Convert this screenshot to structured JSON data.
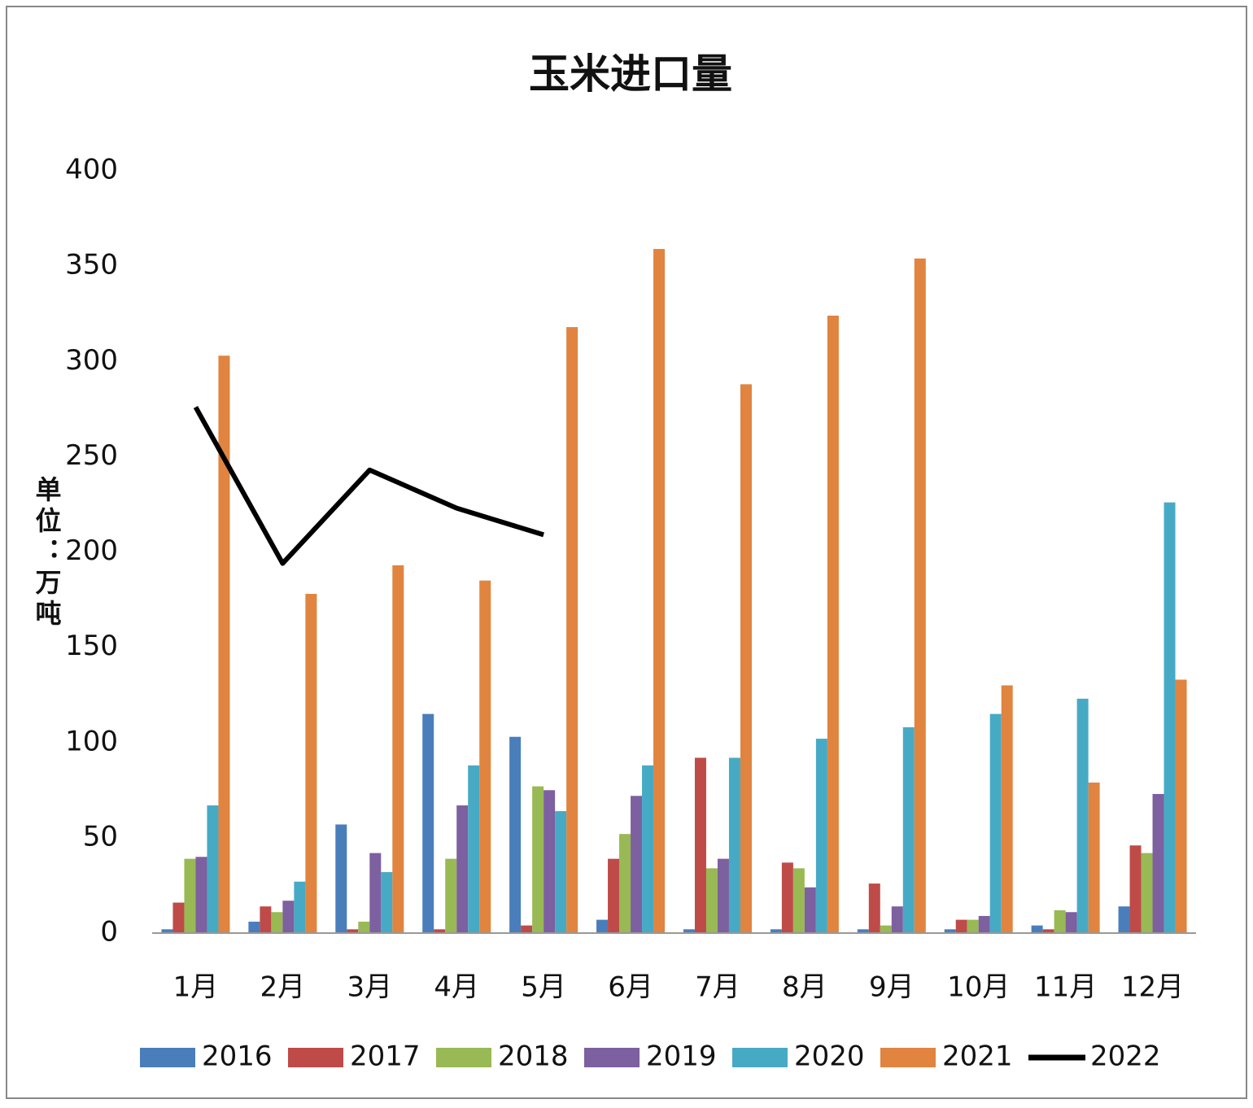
{
  "chart_data": {
    "type": "bar",
    "title": "玉米进口量",
    "y_label": "单位：万吨",
    "categories": [
      "1月",
      "2月",
      "3月",
      "4月",
      "5月",
      "6月",
      "7月",
      "8月",
      "9月",
      "10月",
      "11月",
      "12月"
    ],
    "series": [
      {
        "name": "2016",
        "color": "#4a7ebb",
        "values": [
          2,
          6,
          57,
          115,
          103,
          7,
          2,
          2,
          2,
          2,
          4,
          14
        ]
      },
      {
        "name": "2017",
        "color": "#be4b48",
        "values": [
          16,
          14,
          2,
          2,
          4,
          39,
          92,
          37,
          26,
          7,
          2,
          46
        ]
      },
      {
        "name": "2018",
        "color": "#98b954",
        "values": [
          39,
          11,
          6,
          39,
          77,
          52,
          34,
          34,
          4,
          7,
          12,
          42
        ]
      },
      {
        "name": "2019",
        "color": "#7d60a0",
        "values": [
          40,
          17,
          42,
          67,
          75,
          72,
          39,
          24,
          14,
          9,
          11,
          73
        ]
      },
      {
        "name": "2020",
        "color": "#46aac5",
        "values": [
          67,
          27,
          32,
          88,
          64,
          88,
          92,
          102,
          108,
          115,
          123,
          226
        ]
      },
      {
        "name": "2021",
        "color": "#e0843f",
        "values": [
          303,
          178,
          193,
          185,
          318,
          359,
          288,
          324,
          354,
          130,
          79,
          133
        ]
      },
      {
        "name": "2022",
        "color": "#000000",
        "type": "line",
        "values": [
          276,
          194,
          243,
          223,
          209,
          null,
          null,
          null,
          null,
          null,
          null,
          null
        ]
      }
    ],
    "ylim": [
      0,
      400
    ],
    "yticks": [
      0,
      50,
      100,
      150,
      200,
      250,
      300,
      350,
      400
    ],
    "grid": false
  }
}
